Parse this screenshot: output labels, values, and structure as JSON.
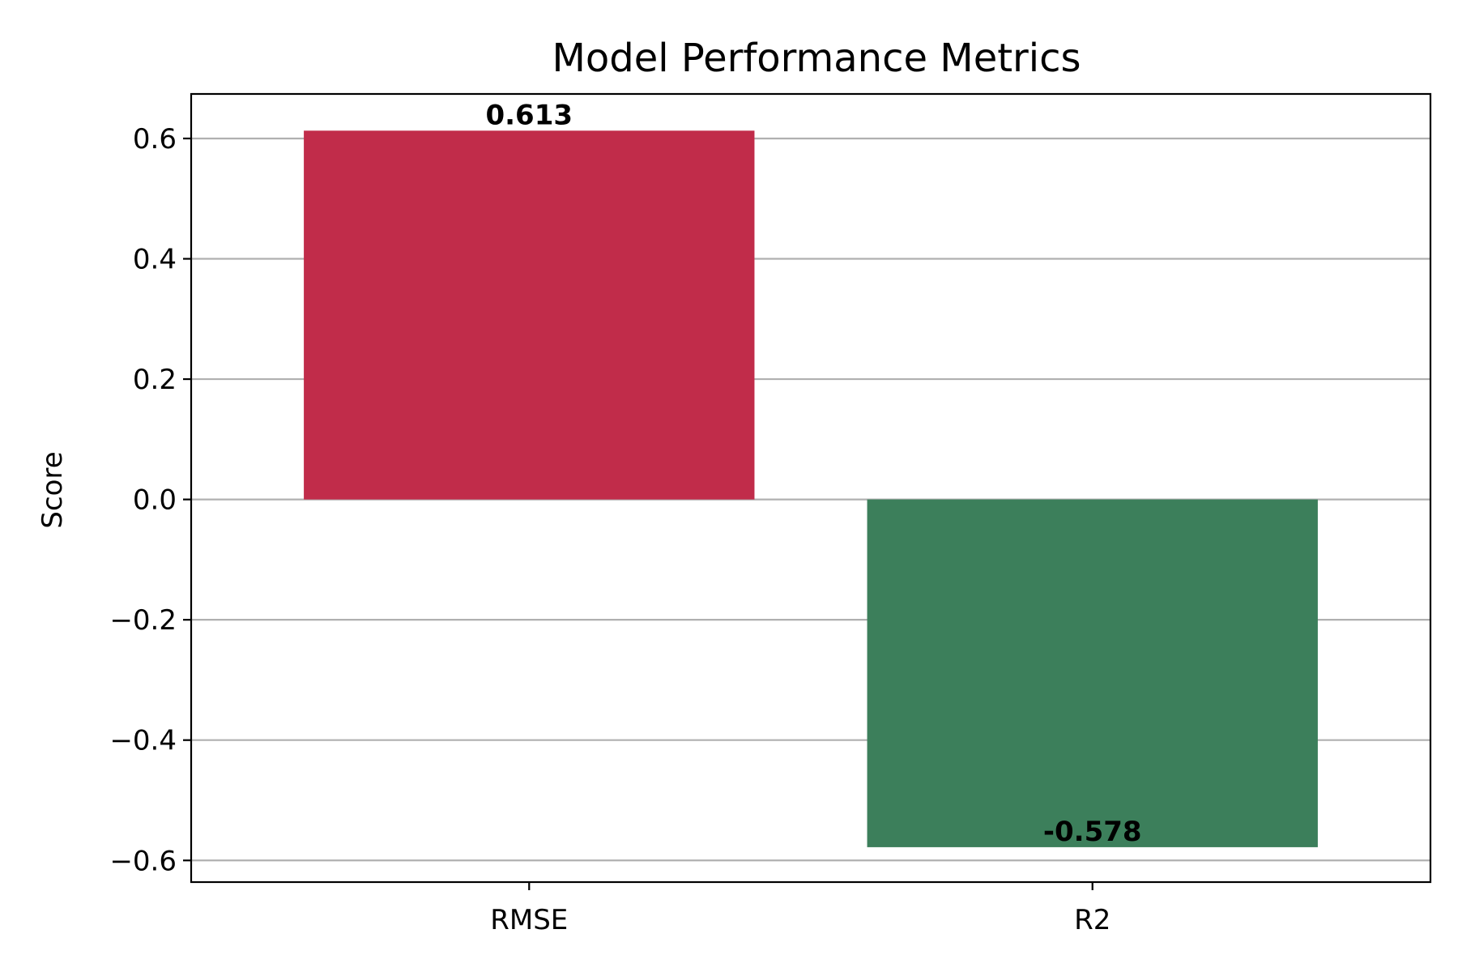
{
  "chart_data": {
    "type": "bar",
    "title": "Model Performance Metrics",
    "xlabel": "",
    "ylabel": "Score",
    "categories": [
      "RMSE",
      "R2"
    ],
    "values": [
      0.613,
      -0.578
    ],
    "value_labels": [
      "0.613",
      "-0.578"
    ],
    "colors": [
      "#c12c4a",
      "#3c7f5b"
    ],
    "ylim": [
      -0.636,
      0.674
    ],
    "yticks": [
      -0.6,
      -0.4,
      -0.2,
      0.0,
      0.2,
      0.4,
      0.6
    ],
    "ytick_labels": [
      "−0.6",
      "−0.4",
      "−0.2",
      "0.0",
      "0.2",
      "0.4",
      "0.6"
    ],
    "grid": "y",
    "legend": "none"
  }
}
